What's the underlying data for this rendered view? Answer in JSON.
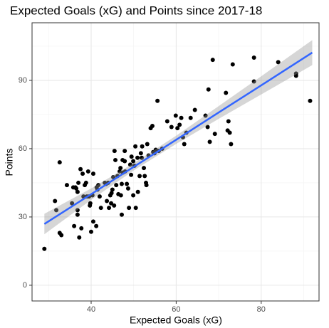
{
  "chart_data": {
    "type": "scatter",
    "title": "Expected Goals (xG) and Points since 2017-18",
    "x_label": "Expected Goals (xG)",
    "y_label": "Points",
    "x": [
      29,
      31.5,
      31.8,
      32.6,
      32.6,
      33,
      34.3,
      35.5,
      35.8,
      36,
      36.3,
      36.5,
      36.8,
      36.8,
      36.8,
      37,
      37.2,
      37.5,
      37.7,
      38,
      38.2,
      38.5,
      38.8,
      39,
      39.3,
      39.5,
      39.7,
      39.8,
      40,
      40.3,
      40.5,
      40.5,
      41.2,
      41.3,
      41.5,
      41.7,
      42,
      42.3,
      43.2,
      43.5,
      43.7,
      44,
      44.2,
      44.5,
      44.7,
      44.8,
      45,
      45.2,
      45.4,
      45.5,
      45.7,
      45.9,
      46.2,
      46.4,
      46.7,
      46.9,
      47,
      47.2,
      47.2,
      47.4,
      47.5,
      47.9,
      47.9,
      48,
      48.4,
      48.7,
      48.9,
      49.2,
      49.4,
      49.5,
      49.9,
      49.9,
      50.2,
      50.4,
      50.5,
      50.9,
      51,
      51.4,
      51.7,
      51.9,
      52,
      52.4,
      52.6,
      52.9,
      53,
      53.2,
      53.5,
      54,
      54.4,
      54.6,
      54.9,
      55.2,
      55.6,
      55.9,
      56.7,
      57.9,
      58.9,
      59.9,
      60.3,
      60.8,
      61.2,
      61.6,
      61.9,
      62.4,
      63.4,
      64.4,
      66.9,
      67.4,
      67.6,
      67.9,
      68.6,
      69.1,
      71.7,
      72.1,
      72.3,
      72.6,
      72.9,
      73.3,
      78.3,
      78.3,
      84,
      88.2,
      88.2,
      91.5
    ],
    "values": [
      16,
      37,
      33,
      54,
      23,
      22,
      44,
      36,
      43,
      26,
      43,
      42.5,
      33,
      31,
      41,
      45,
      21,
      51,
      25,
      49,
      39,
      44,
      45,
      39,
      50,
      39,
      35,
      36,
      23.5,
      39.5,
      49,
      28,
      26,
      43,
      42,
      44,
      39,
      34,
      45,
      44.5,
      37,
      45,
      34,
      39.5,
      36,
      40.5,
      42,
      47.5,
      35,
      59,
      55,
      44,
      48,
      40,
      50,
      51.5,
      39.5,
      44.5,
      31,
      55,
      49.5,
      59,
      54.5,
      50,
      44.5,
      42.5,
      34,
      53,
      48.5,
      56.5,
      54.5,
      39.5,
      52.5,
      61,
      34,
      56,
      41,
      48,
      58,
      56,
      61,
      51.5,
      48,
      45,
      44,
      62,
      57,
      69,
      70,
      58.5,
      58,
      59.5,
      81,
      59,
      60,
      72,
      69.5,
      74.5,
      69,
      70.5,
      73.5,
      65,
      62,
      67,
      73.5,
      77,
      74.5,
      69.5,
      86,
      63,
      99,
      66.5,
      84.5,
      68,
      72,
      67,
      62,
      97,
      89.5,
      100,
      98,
      93,
      92,
      81
    ],
    "color": "#000000",
    "trend": {
      "color": "#3366ff",
      "band_color": "#999999",
      "x": [
        29,
        40,
        50,
        60,
        70,
        80,
        92
      ],
      "y": [
        26.9,
        40.0,
        52.0,
        63.9,
        75.9,
        87.8,
        102.2
      ],
      "lower": [
        22.4,
        37.5,
        50.4,
        62.1,
        73.1,
        83.8,
        96.7
      ],
      "upper": [
        31.4,
        42.5,
        53.6,
        65.7,
        78.7,
        91.8,
        107.7
      ]
    },
    "xlim": [
      26.1,
      93.6
    ],
    "xticks": [
      40,
      60,
      80
    ],
    "xminor": [
      30,
      50,
      70,
      90
    ],
    "ylim": [
      -6.9,
      115.3
    ],
    "yticks": [
      0,
      30,
      60,
      90
    ],
    "yminor": [
      15,
      45,
      75,
      105
    ],
    "grid": true
  }
}
